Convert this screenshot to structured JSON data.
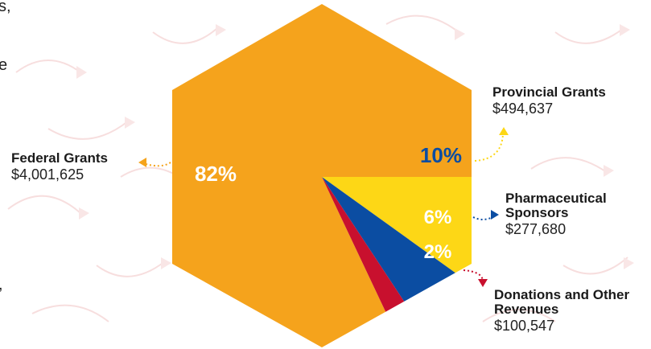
{
  "background_text": {
    "frag1": "s,",
    "frag2": "e",
    "frag3": ","
  },
  "chart_data": {
    "type": "pie",
    "shape": "hexagon",
    "title": "",
    "slices": [
      {
        "name": "Federal Grants",
        "amount": "$4,001,625",
        "value": 4001625,
        "percent_label": "82%",
        "color": "#F5A31C"
      },
      {
        "name": "Provincial Grants",
        "amount": "$494,637",
        "value": 494637,
        "percent_label": "10%",
        "color": "#FDD716"
      },
      {
        "name": "Pharmaceutical Sponsors",
        "amount": "$277,680",
        "value": 277680,
        "percent_label": "6%",
        "color": "#0B4DA2"
      },
      {
        "name": "Donations and Other Revenues",
        "amount": "$100,547",
        "value": 100547,
        "percent_label": "2%",
        "color": "#C8102E"
      }
    ]
  }
}
